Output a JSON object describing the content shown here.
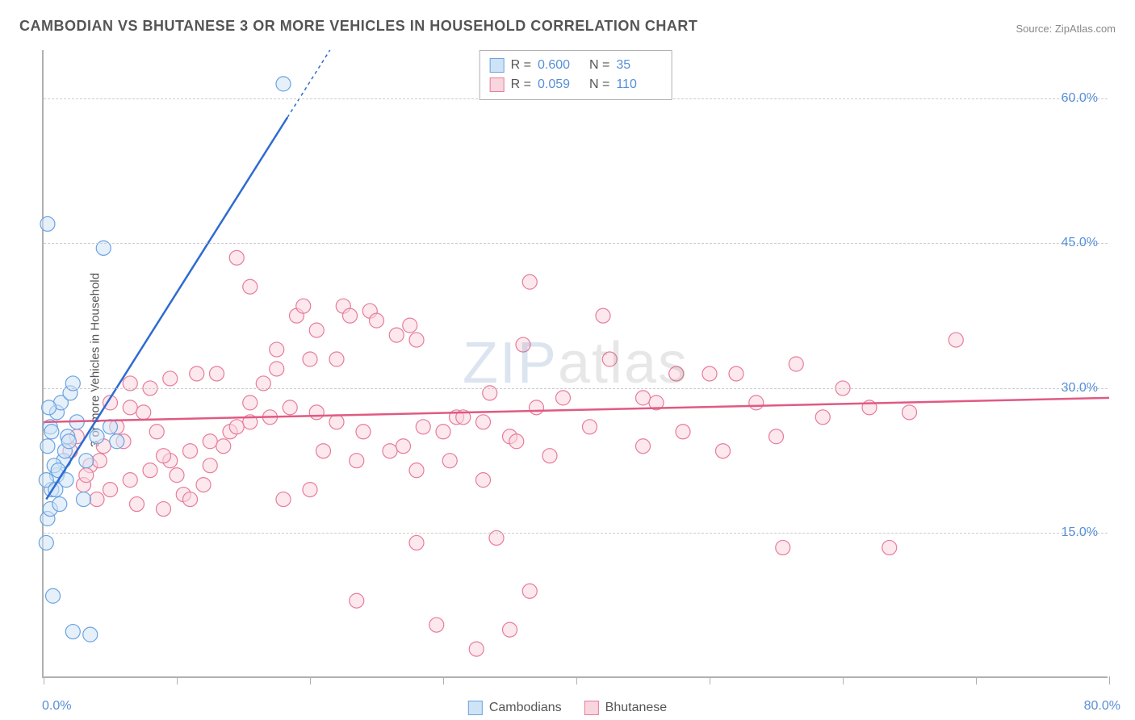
{
  "title": "CAMBODIAN VS BHUTANESE 3 OR MORE VEHICLES IN HOUSEHOLD CORRELATION CHART",
  "source_label": "Source: ZipAtlas.com",
  "watermark": {
    "left": "ZIP",
    "right": "atlas"
  },
  "chart": {
    "type": "scatter",
    "background_color": "#ffffff",
    "grid_color": "#cccccc",
    "axis_color": "#b0b0b0",
    "xlim": [
      0,
      80
    ],
    "ylim": [
      0,
      65
    ],
    "x_ticks": [
      0,
      10,
      20,
      30,
      40,
      50,
      60,
      70,
      80
    ],
    "x_tick_labels": {
      "0": "0.0%",
      "80": "80.0%"
    },
    "y_ticks": [
      15,
      30,
      45,
      60
    ],
    "y_tick_labels": {
      "15": "15.0%",
      "30": "30.0%",
      "45": "45.0%",
      "60": "60.0%"
    },
    "y_axis_label": "3 or more Vehicles in Household",
    "tick_label_color": "#568fd8",
    "label_fontsize": 15,
    "tick_fontsize": 16,
    "marker_radius": 9,
    "marker_stroke_width": 1.2,
    "series": [
      {
        "name": "Cambodians",
        "fill": "#cfe3f7",
        "stroke": "#6aa3e0",
        "fill_opacity": 0.55,
        "stats": {
          "R": "0.600",
          "N": "35"
        },
        "trend": {
          "x1": 0.2,
          "y1": 18.5,
          "x2": 21.5,
          "y2": 65,
          "color": "#2e6bd1",
          "width": 2.5,
          "dash_tail": true
        },
        "points": [
          [
            0.3,
            47.0
          ],
          [
            4.5,
            44.5
          ],
          [
            0.2,
            14.0
          ],
          [
            2.2,
            4.8
          ],
          [
            3.5,
            4.5
          ],
          [
            0.7,
            8.5
          ],
          [
            0.3,
            16.5
          ],
          [
            0.5,
            17.5
          ],
          [
            0.6,
            19.5
          ],
          [
            1.0,
            21.0
          ],
          [
            1.5,
            22.5
          ],
          [
            1.8,
            25.0
          ],
          [
            2.5,
            26.5
          ],
          [
            0.3,
            24.0
          ],
          [
            0.5,
            26.0
          ],
          [
            1.0,
            27.5
          ],
          [
            1.3,
            28.5
          ],
          [
            2.0,
            29.5
          ],
          [
            2.2,
            30.5
          ],
          [
            1.6,
            23.5
          ],
          [
            1.9,
            24.5
          ],
          [
            0.8,
            22.0
          ],
          [
            4.0,
            25.0
          ],
          [
            5.0,
            26.0
          ],
          [
            0.2,
            20.5
          ],
          [
            18.0,
            61.5
          ],
          [
            3.0,
            18.5
          ],
          [
            1.2,
            18.0
          ],
          [
            0.6,
            25.5
          ],
          [
            0.4,
            28.0
          ],
          [
            1.1,
            21.5
          ],
          [
            3.2,
            22.5
          ],
          [
            5.5,
            24.5
          ],
          [
            0.9,
            19.5
          ],
          [
            1.7,
            20.5
          ]
        ]
      },
      {
        "name": "Bhutanese",
        "fill": "#f9d6de",
        "stroke": "#e77c9a",
        "fill_opacity": 0.55,
        "stats": {
          "R": "0.059",
          "N": "110"
        },
        "trend": {
          "x1": 0,
          "y1": 26.5,
          "x2": 80,
          "y2": 29.0,
          "color": "#e05a82",
          "width": 2.5,
          "dash_tail": false
        },
        "points": [
          [
            14.5,
            43.5
          ],
          [
            15.5,
            40.5
          ],
          [
            17.5,
            34.0
          ],
          [
            19.0,
            37.5
          ],
          [
            19.5,
            38.5
          ],
          [
            20.5,
            36.0
          ],
          [
            20.0,
            33.0
          ],
          [
            22.5,
            38.5
          ],
          [
            23.0,
            37.5
          ],
          [
            22.0,
            33.0
          ],
          [
            24.5,
            38.0
          ],
          [
            25.0,
            37.0
          ],
          [
            26.5,
            35.5
          ],
          [
            27.5,
            36.5
          ],
          [
            28.0,
            35.0
          ],
          [
            36.5,
            41.0
          ],
          [
            42.0,
            37.5
          ],
          [
            52.0,
            31.5
          ],
          [
            47.5,
            31.5
          ],
          [
            68.5,
            35.0
          ],
          [
            45.0,
            29.0
          ],
          [
            46.0,
            28.5
          ],
          [
            50.0,
            31.5
          ],
          [
            53.5,
            28.5
          ],
          [
            60.0,
            30.0
          ],
          [
            56.5,
            32.5
          ],
          [
            42.5,
            33.0
          ],
          [
            36.0,
            34.5
          ],
          [
            33.5,
            29.5
          ],
          [
            31.0,
            27.0
          ],
          [
            28.5,
            26.0
          ],
          [
            27.0,
            24.0
          ],
          [
            24.0,
            25.5
          ],
          [
            22.0,
            26.5
          ],
          [
            20.5,
            27.5
          ],
          [
            18.5,
            28.0
          ],
          [
            17.0,
            27.0
          ],
          [
            15.5,
            26.5
          ],
          [
            14.0,
            25.5
          ],
          [
            12.5,
            24.5
          ],
          [
            11.0,
            23.5
          ],
          [
            9.5,
            22.5
          ],
          [
            8.0,
            21.5
          ],
          [
            6.5,
            20.5
          ],
          [
            5.0,
            19.5
          ],
          [
            4.0,
            18.5
          ],
          [
            3.0,
            20.0
          ],
          [
            3.5,
            22.0
          ],
          [
            4.5,
            24.0
          ],
          [
            5.5,
            26.0
          ],
          [
            6.5,
            28.0
          ],
          [
            7.5,
            27.5
          ],
          [
            8.5,
            25.5
          ],
          [
            9.0,
            23.0
          ],
          [
            10.0,
            21.0
          ],
          [
            10.5,
            19.0
          ],
          [
            12.0,
            20.0
          ],
          [
            12.5,
            22.0
          ],
          [
            13.5,
            24.0
          ],
          [
            14.5,
            26.0
          ],
          [
            15.5,
            28.5
          ],
          [
            16.5,
            30.5
          ],
          [
            17.5,
            32.0
          ],
          [
            13.0,
            31.5
          ],
          [
            11.5,
            31.5
          ],
          [
            9.5,
            31.0
          ],
          [
            8.0,
            30.0
          ],
          [
            6.5,
            30.5
          ],
          [
            5.0,
            28.5
          ],
          [
            21.0,
            23.5
          ],
          [
            23.5,
            22.5
          ],
          [
            26.0,
            23.5
          ],
          [
            28.0,
            21.5
          ],
          [
            30.0,
            25.5
          ],
          [
            31.5,
            27.0
          ],
          [
            33.0,
            26.5
          ],
          [
            35.0,
            25.0
          ],
          [
            37.0,
            28.0
          ],
          [
            39.0,
            29.0
          ],
          [
            41.0,
            26.0
          ],
          [
            30.5,
            22.5
          ],
          [
            33.0,
            20.5
          ],
          [
            35.5,
            24.5
          ],
          [
            38.0,
            23.0
          ],
          [
            45.0,
            24.0
          ],
          [
            48.0,
            25.5
          ],
          [
            51.0,
            23.5
          ],
          [
            55.0,
            25.0
          ],
          [
            58.5,
            27.0
          ],
          [
            62.0,
            28.0
          ],
          [
            65.0,
            27.5
          ],
          [
            7.0,
            18.0
          ],
          [
            9.0,
            17.5
          ],
          [
            11.0,
            18.5
          ],
          [
            32.5,
            3.0
          ],
          [
            28.0,
            14.0
          ],
          [
            29.5,
            5.5
          ],
          [
            34.0,
            14.5
          ],
          [
            36.5,
            9.0
          ],
          [
            35.0,
            5.0
          ],
          [
            23.5,
            8.0
          ],
          [
            18.0,
            18.5
          ],
          [
            20.0,
            19.5
          ],
          [
            55.5,
            13.5
          ],
          [
            63.5,
            13.5
          ],
          [
            2.5,
            25.0
          ],
          [
            2.0,
            23.5
          ],
          [
            3.2,
            21.0
          ],
          [
            4.2,
            22.5
          ],
          [
            6.0,
            24.5
          ]
        ]
      }
    ],
    "bottom_legend": [
      {
        "label": "Cambodians",
        "fill": "#cfe3f7",
        "stroke": "#6aa3e0"
      },
      {
        "label": "Bhutanese",
        "fill": "#f9d6de",
        "stroke": "#e77c9a"
      }
    ]
  }
}
